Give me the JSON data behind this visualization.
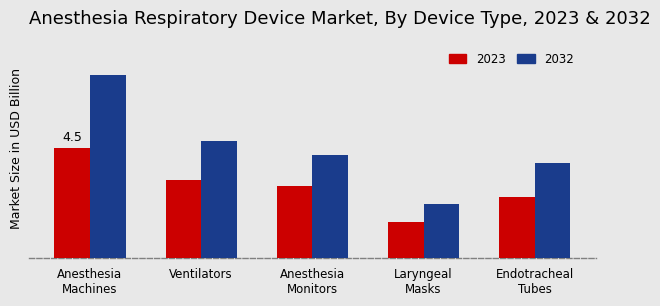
{
  "title": "Anesthesia Respiratory Device Market, By Device Type, 2023 & 2032",
  "ylabel": "Market Size in USD Billion",
  "categories": [
    "Anesthesia\nMachines",
    "Ventilators",
    "Anesthesia\nMonitors",
    "Laryngeal\nMasks",
    "Endotracheal\nTubes"
  ],
  "values_2023": [
    4.5,
    3.2,
    2.95,
    1.5,
    2.5
  ],
  "values_2032": [
    7.5,
    4.8,
    4.2,
    2.2,
    3.9
  ],
  "color_2023": "#cc0000",
  "color_2032": "#1a3c8c",
  "annotation_text": "4.5",
  "annotation_idx": 0,
  "annotation_year": "2023",
  "bar_width": 0.32,
  "background_color": "#e8e8e8",
  "legend_labels": [
    "2023",
    "2032"
  ],
  "ylim": [
    0,
    9
  ],
  "title_fontsize": 13,
  "label_fontsize": 9,
  "tick_fontsize": 8.5
}
